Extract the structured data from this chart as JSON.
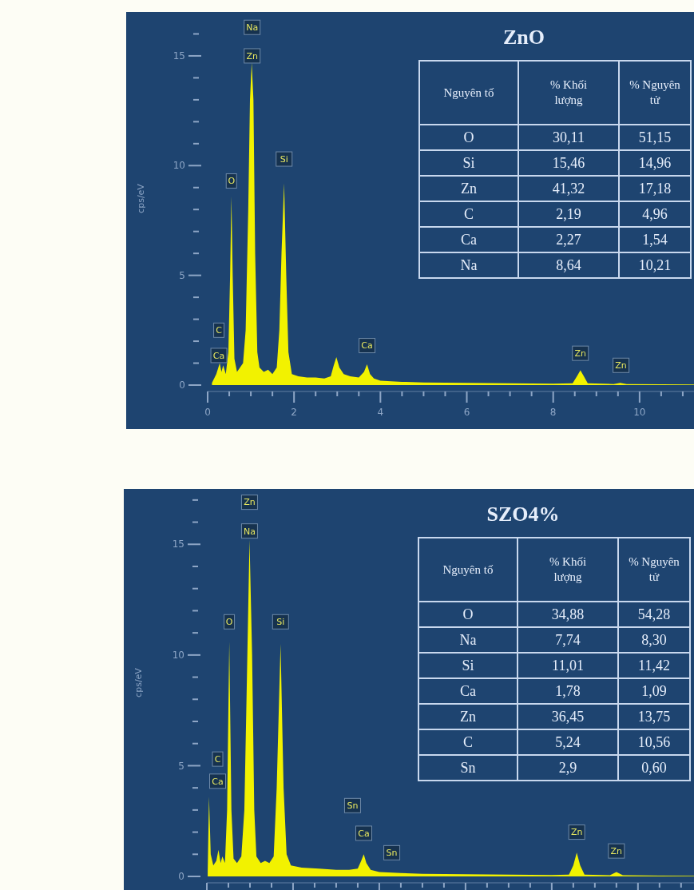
{
  "chart_data": [
    {
      "type": "area",
      "title": "ZnO",
      "ylabel": "cps/eV",
      "xlim": [
        0,
        11.26
      ],
      "ylim": [
        0,
        17
      ],
      "xticks": [
        0,
        {
          "value": 0.5,
          "label": null
        },
        {
          "value": 1,
          "label": null
        },
        {
          "value": 1.5,
          "label": null
        },
        2,
        {
          "value": 2.5,
          "label": null
        },
        {
          "value": 3,
          "label": null
        },
        {
          "value": 3.5,
          "label": null
        },
        4,
        {
          "value": 4.5,
          "label": null
        },
        {
          "value": 5,
          "label": null
        },
        {
          "value": 5.5,
          "label": null
        },
        6,
        {
          "value": 6.5,
          "label": null
        },
        {
          "value": 7,
          "label": null
        },
        {
          "value": 7.5,
          "label": null
        },
        8,
        {
          "value": 8.5,
          "label": null
        },
        {
          "value": 9,
          "label": null
        },
        {
          "value": 9.5,
          "label": null
        },
        10,
        {
          "value": 10.5,
          "label": null
        },
        {
          "value": 11,
          "label": null
        }
      ],
      "yticks": [
        0,
        {
          "value": 1,
          "label": null
        },
        {
          "value": 2,
          "label": null
        },
        {
          "value": 3,
          "label": null
        },
        {
          "value": 4,
          "label": null
        },
        5,
        {
          "value": 6,
          "label": null
        },
        {
          "value": 7,
          "label": null
        },
        {
          "value": 8,
          "label": null
        },
        {
          "value": 9,
          "label": null
        },
        10,
        {
          "value": 11,
          "label": null
        },
        {
          "value": 12,
          "label": null
        },
        {
          "value": 13,
          "label": null
        },
        {
          "value": 14,
          "label": null
        },
        15,
        {
          "value": 16,
          "label": null
        }
      ],
      "series": [
        {
          "color": "#f2f200",
          "x": [
            0.1,
            0.2,
            0.28,
            0.32,
            0.36,
            0.42,
            0.48,
            0.52,
            0.55,
            0.58,
            0.62,
            0.68,
            0.75,
            0.82,
            0.88,
            0.94,
            0.98,
            1.02,
            1.06,
            1.1,
            1.15,
            1.2,
            1.3,
            1.4,
            1.5,
            1.6,
            1.66,
            1.71,
            1.77,
            1.82,
            1.87,
            1.95,
            2.1,
            2.3,
            2.5,
            2.7,
            2.85,
            2.92,
            2.98,
            3.05,
            3.15,
            3.3,
            3.5,
            3.62,
            3.69,
            3.76,
            3.85,
            4.0,
            4.5,
            5,
            6,
            7,
            8,
            8.45,
            8.55,
            8.63,
            8.71,
            8.8,
            9.4,
            9.55,
            9.7,
            10.5,
            11.26
          ],
          "values": [
            0.1,
            0.5,
            1.0,
            0.6,
            0.9,
            0.5,
            1.5,
            5,
            8.6,
            5,
            1.2,
            0.6,
            0.8,
            1.0,
            2.5,
            8,
            13,
            14.7,
            13,
            6,
            1.5,
            0.8,
            0.6,
            0.7,
            0.5,
            0.8,
            2.5,
            6,
            9.2,
            5,
            1.5,
            0.5,
            0.4,
            0.35,
            0.35,
            0.3,
            0.4,
            0.9,
            1.27,
            0.8,
            0.5,
            0.4,
            0.35,
            0.6,
            0.95,
            0.5,
            0.3,
            0.2,
            0.15,
            0.12,
            0.1,
            0.08,
            0.06,
            0.08,
            0.4,
            0.67,
            0.4,
            0.08,
            0.05,
            0.1,
            0.05,
            0.04,
            0.03
          ]
        }
      ],
      "annotations": [
        {
          "text": "Na",
          "x": 1.03,
          "y": 16.3
        },
        {
          "text": "Zn",
          "x": 1.03,
          "y": 15.0
        },
        {
          "text": "O",
          "x": 0.55,
          "y": 9.3
        },
        {
          "text": "Si",
          "x": 1.77,
          "y": 10.3
        },
        {
          "text": "C",
          "x": 0.26,
          "y": 2.5
        },
        {
          "text": "Ca",
          "x": 0.26,
          "y": 1.35
        },
        {
          "text": "Ca",
          "x": 3.69,
          "y": 1.8
        },
        {
          "text": "Zn",
          "x": 8.63,
          "y": 1.45
        },
        {
          "text": "Zn",
          "x": 9.57,
          "y": 0.9
        },
        "Nguyên tố",
        "% Khối lượng",
        "% Nguyên tử",
        "O",
        "30,11",
        "51,15",
        "Si",
        "15,46",
        "14,96",
        "Zn",
        "41,32",
        "17,18",
        "C",
        "2,19",
        "4,96",
        "Ca",
        "2,27",
        "1,54",
        "Na",
        "8,64",
        "10,21"
      ]
    },
    {
      "type": "area",
      "title": "SZO4%",
      "ylabel": "cps/eV",
      "xlim": [
        0,
        11.3
      ],
      "ylim": [
        0,
        17.5
      ],
      "tick_labels": "y",
      "xticks": [
        0,
        {
          "value": 0.5,
          "label": null
        },
        {
          "value": 1,
          "label": null
        },
        {
          "value": 1.5,
          "label": null
        },
        2,
        {
          "value": 2.5,
          "label": null
        },
        {
          "value": 3,
          "label": null
        },
        {
          "value": 3.5,
          "label": null
        },
        4,
        {
          "value": 4.5,
          "label": null
        },
        {
          "value": 5,
          "label": null
        },
        {
          "value": 5.5,
          "label": null
        },
        6,
        {
          "value": 6.5,
          "label": null
        },
        {
          "value": 7,
          "label": null
        },
        {
          "value": 7.5,
          "label": null
        },
        8,
        {
          "value": 8.5,
          "label": null
        },
        {
          "value": 9,
          "label": null
        },
        {
          "value": 9.5,
          "label": null
        },
        10,
        {
          "value": 10.5,
          "label": null
        },
        {
          "value": 11,
          "label": null
        }
      ],
      "yticks": [
        0,
        {
          "value": 1,
          "label": null
        },
        {
          "value": 2,
          "label": null
        },
        {
          "value": 3,
          "label": null
        },
        {
          "value": 4,
          "label": null
        },
        5,
        {
          "value": 6,
          "label": null
        },
        {
          "value": 7,
          "label": null
        },
        {
          "value": 8,
          "label": null
        },
        {
          "value": 9,
          "label": null
        },
        10,
        {
          "value": 11,
          "label": null
        },
        {
          "value": 12,
          "label": null
        },
        {
          "value": 13,
          "label": null
        },
        {
          "value": 14,
          "label": null
        },
        15,
        {
          "value": 16,
          "label": null
        },
        {
          "value": 17,
          "label": null
        }
      ],
      "series": [
        {
          "color": "#f2f200",
          "x": [
            0.02,
            0.05,
            0.09,
            0.15,
            0.22,
            0.27,
            0.32,
            0.36,
            0.42,
            0.47,
            0.52,
            0.57,
            0.62,
            0.7,
            0.8,
            0.87,
            0.93,
            0.99,
            1.05,
            1.1,
            1.15,
            1.25,
            1.35,
            1.45,
            1.55,
            1.62,
            1.71,
            1.78,
            1.85,
            1.95,
            2.2,
            2.6,
            3.0,
            3.3,
            3.5,
            3.58,
            3.64,
            3.7,
            3.8,
            4.0,
            4.5,
            5,
            6,
            7,
            8,
            8.4,
            8.5,
            8.58,
            8.66,
            8.76,
            9.35,
            9.5,
            9.65,
            10.5,
            11.3
          ],
          "values": [
            0.2,
            3.6,
            1.0,
            0.5,
            0.7,
            1.2,
            0.6,
            0.9,
            0.6,
            3,
            10.6,
            3,
            0.8,
            0.6,
            0.9,
            3,
            9,
            15.2,
            10,
            3,
            0.9,
            0.6,
            0.7,
            0.6,
            0.9,
            4,
            10.5,
            4,
            1.0,
            0.5,
            0.4,
            0.35,
            0.3,
            0.3,
            0.35,
            0.7,
            1.0,
            0.6,
            0.3,
            0.2,
            0.15,
            0.12,
            0.1,
            0.08,
            0.06,
            0.08,
            0.5,
            1.07,
            0.5,
            0.08,
            0.05,
            0.2,
            0.05,
            0.04,
            0.03
          ]
        }
      ],
      "annotations": [
        {
          "text": "Zn",
          "x": 0.99,
          "y": 16.9
        },
        {
          "text": "Na",
          "x": 0.99,
          "y": 15.6
        },
        {
          "text": "O",
          "x": 0.52,
          "y": 11.5
        },
        {
          "text": "Si",
          "x": 1.71,
          "y": 11.5
        },
        {
          "text": "C",
          "x": 0.25,
          "y": 5.3
        },
        {
          "text": "Ca",
          "x": 0.25,
          "y": 4.3
        },
        {
          "text": "Sn",
          "x": 3.38,
          "y": 3.2
        },
        {
          "text": "Ca",
          "x": 3.64,
          "y": 1.95
        },
        {
          "text": "Sn",
          "x": 4.29,
          "y": 1.07
        },
        {
          "text": "Zn",
          "x": 8.58,
          "y": 2.0
        },
        {
          "text": "Zn",
          "x": 9.5,
          "y": 1.15
        },
        "Nguyên tố",
        "% Khối lượng",
        "% Nguyên tử",
        "O",
        "34,88",
        "54,28",
        "Na",
        "7,74",
        "8,30",
        "Si",
        "11,01",
        "11,42",
        "Ca",
        "1,78",
        "1,09",
        "Zn",
        "36,45",
        "13,75",
        "C",
        "5,24",
        "10,56",
        "Sn",
        "2,9",
        "0,60"
      ]
    }
  ]
}
